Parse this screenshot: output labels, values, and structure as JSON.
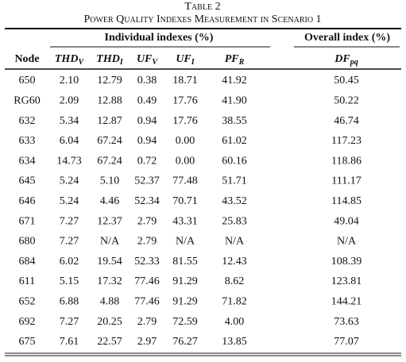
{
  "caption": {
    "label": "Table 2",
    "title": "Power Quality Indexes Measurement in Scenario 1"
  },
  "table": {
    "group_headers": [
      "Individual indexes (%)",
      "Overall index (%)"
    ],
    "columns": [
      {
        "main": "Node"
      },
      {
        "main": "THD",
        "sub": "V"
      },
      {
        "main": "THD",
        "sub": "I"
      },
      {
        "main": "UF",
        "sub": "V"
      },
      {
        "main": "UF",
        "sub": "I"
      },
      {
        "main": "PF",
        "sub": "R"
      },
      {
        "main": "DF",
        "sub": "pq"
      }
    ],
    "rows": [
      [
        "650",
        "2.10",
        "12.79",
        "0.38",
        "18.71",
        "41.92",
        "50.45"
      ],
      [
        "RG60",
        "2.09",
        "12.88",
        "0.49",
        "17.76",
        "41.90",
        "50.22"
      ],
      [
        "632",
        "5.34",
        "12.87",
        "0.94",
        "17.76",
        "38.55",
        "46.74"
      ],
      [
        "633",
        "6.04",
        "67.24",
        "0.94",
        "0.00",
        "61.02",
        "117.23"
      ],
      [
        "634",
        "14.73",
        "67.24",
        "0.72",
        "0.00",
        "60.16",
        "118.86"
      ],
      [
        "645",
        "5.24",
        "5.10",
        "52.37",
        "77.48",
        "51.71",
        "111.17"
      ],
      [
        "646",
        "5.24",
        "4.46",
        "52.34",
        "70.71",
        "43.52",
        "114.85"
      ],
      [
        "671",
        "7.27",
        "12.37",
        "2.79",
        "43.31",
        "25.83",
        "49.04"
      ],
      [
        "680",
        "7.27",
        "N/A",
        "2.79",
        "N/A",
        "N/A",
        "N/A"
      ],
      [
        "684",
        "6.02",
        "19.54",
        "52.33",
        "81.55",
        "12.43",
        "108.39"
      ],
      [
        "611",
        "5.15",
        "17.32",
        "77.46",
        "91.29",
        "8.62",
        "123.81"
      ],
      [
        "652",
        "6.88",
        "4.88",
        "77.46",
        "91.29",
        "71.82",
        "144.21"
      ],
      [
        "692",
        "7.27",
        "20.25",
        "2.79",
        "72.59",
        "4.00",
        "73.63"
      ],
      [
        "675",
        "7.61",
        "22.57",
        "2.97",
        "76.27",
        "13.85",
        "77.07"
      ]
    ]
  }
}
